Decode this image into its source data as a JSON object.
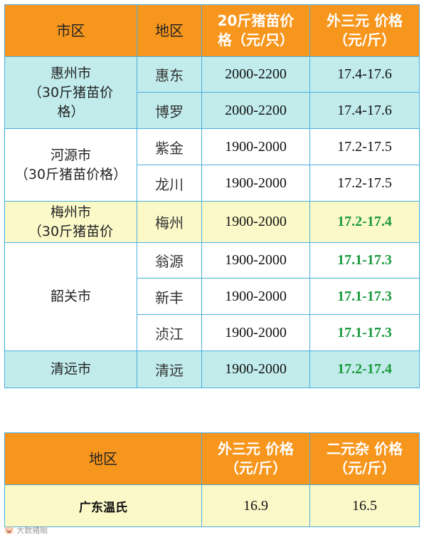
{
  "table1": {
    "headers": {
      "city": "市区",
      "district": "地区",
      "piglet_price_line1": "20斤猪苗价",
      "piglet_price_line2": "格（元/只）",
      "pig_price_line1": "外三元 价格",
      "pig_price_line2": "（元/斤）"
    },
    "groups": [
      {
        "city_line1": "惠州市",
        "city_line2": "（30斤猪苗价",
        "city_line3": "格）",
        "rows": [
          {
            "district": "惠东",
            "piglet": "2000-2200",
            "pig": "17.4-17.6"
          },
          {
            "district": "博罗",
            "piglet": "2000-2200",
            "pig": "17.4-17.6"
          }
        ]
      },
      {
        "city_line1": "河源市",
        "city_line2": "（30斤猪苗价格）",
        "rows": [
          {
            "district": "紫金",
            "piglet": "1900-2000",
            "pig": "17.2-17.5"
          },
          {
            "district": "龙川",
            "piglet": "1900-2000",
            "pig": "17.2-17.5"
          }
        ]
      },
      {
        "city_line1": "梅州市",
        "city_line2": "（30斤猪苗价",
        "rows": [
          {
            "district": "梅州",
            "piglet": "1900-2000",
            "pig": "17.2-17.4"
          }
        ]
      },
      {
        "city_line1": "韶关市",
        "rows": [
          {
            "district": "翁源",
            "piglet": "1900-2000",
            "pig": "17.1-17.3"
          },
          {
            "district": "新丰",
            "piglet": "1900-2000",
            "pig": "17.1-17.3"
          },
          {
            "district": "浈江",
            "piglet": "1900-2000",
            "pig": "17.1-17.3"
          }
        ]
      },
      {
        "city_line1": "清远市",
        "rows": [
          {
            "district": "清远",
            "piglet": "1900-2000",
            "pig": "17.2-17.4"
          }
        ]
      }
    ]
  },
  "table2": {
    "headers": {
      "region": "地区",
      "pig_price_line1": "外三元 价格",
      "pig_price_line2": "（元/斤）",
      "mixed_price_line1": "二元杂 价格",
      "mixed_price_line2": "（元/斤）"
    },
    "row": {
      "region": "广东温氏",
      "pig": "16.9",
      "mixed": "16.5"
    }
  },
  "watermark_logo": "大数猪眼",
  "colors": {
    "header_orange": "#f7961d",
    "cyan_row": "#c2ecec",
    "yellow_row": "#fcf9c9",
    "green_price": "#1a9a3c",
    "border_blue": "#49aee0"
  }
}
